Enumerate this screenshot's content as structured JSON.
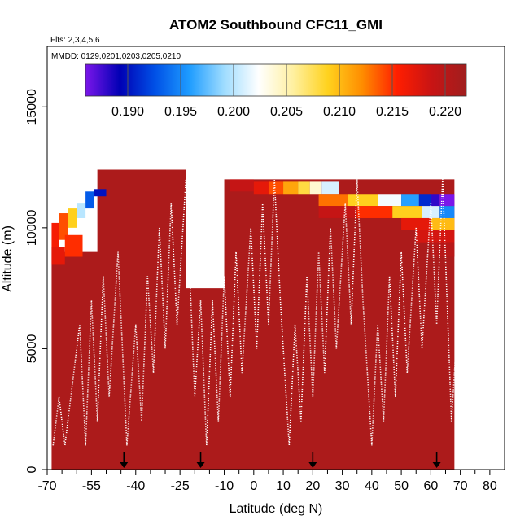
{
  "chart_data": {
    "type": "heatmap",
    "title": "ATOM2 Southbound CFC11_GMI",
    "subtitle_flights": "Flts: 2,3,4,5,6",
    "subtitle_dates": "MMDD: 0129,0201,0203,0205,0210",
    "xlabel": "Latitude (deg N)",
    "ylabel": "Altitude (m)",
    "xlim": [
      -70,
      85
    ],
    "ylim": [
      0,
      17500
    ],
    "x_ticks": [
      -70,
      -55,
      -40,
      -25,
      -10,
      0,
      10,
      20,
      30,
      40,
      50,
      60,
      70,
      80
    ],
    "x_minor_ticks": [
      -65,
      -60,
      -50,
      -45,
      -35,
      -30,
      -20,
      -15,
      -5,
      5,
      15,
      25,
      35,
      45,
      55,
      65,
      75
    ],
    "y_ticks": [
      0,
      5000,
      10000,
      15000
    ],
    "colorbar": {
      "min": 0.186,
      "max": 0.222,
      "ticks": [
        0.19,
        0.195,
        0.2,
        0.205,
        0.21,
        0.215,
        0.22
      ],
      "tick_labels": [
        "0.190",
        "0.195",
        "0.200",
        "0.205",
        "0.210",
        "0.215",
        "0.220"
      ],
      "colors": [
        "#7b16ea",
        "#0000b4",
        "#0050e6",
        "#1e9cff",
        "#9edcff",
        "#ffffff",
        "#fff0a0",
        "#ffd21e",
        "#ff8c00",
        "#ff1e00",
        "#c81414",
        "#a01e1e"
      ]
    },
    "background_value": 0.221,
    "patches": [
      {
        "x": [
          -68.5,
          -66
        ],
        "y": [
          9000,
          10200
        ],
        "value": 0.216
      },
      {
        "x": [
          -66,
          -63
        ],
        "y": [
          9500,
          10600
        ],
        "value": 0.214
      },
      {
        "x": [
          -63,
          -60
        ],
        "y": [
          10000,
          10800
        ],
        "value": 0.209
      },
      {
        "x": [
          -60,
          -57
        ],
        "y": [
          10400,
          11000
        ],
        "value": 0.2
      },
      {
        "x": [
          -57,
          -54
        ],
        "y": [
          10800,
          11500
        ],
        "value": 0.193
      },
      {
        "x": [
          -54,
          -50
        ],
        "y": [
          11300,
          11600
        ],
        "value": 0.19
      },
      {
        "x": [
          -68.5,
          -64
        ],
        "y": [
          8500,
          9200
        ],
        "value": 0.217
      },
      {
        "x": [
          -64,
          -58
        ],
        "y": [
          8800,
          9700
        ],
        "value": 0.215
      },
      {
        "x": [
          -8,
          0
        ],
        "y": [
          11500,
          12000
        ],
        "value": 0.219
      },
      {
        "x": [
          0,
          5
        ],
        "y": [
          11400,
          11900
        ],
        "value": 0.217
      },
      {
        "x": [
          5,
          10
        ],
        "y": [
          11400,
          11900
        ],
        "value": 0.214
      },
      {
        "x": [
          10,
          15
        ],
        "y": [
          11400,
          11900
        ],
        "value": 0.211
      },
      {
        "x": [
          15,
          19
        ],
        "y": [
          11400,
          11900
        ],
        "value": 0.208
      },
      {
        "x": [
          19,
          23
        ],
        "y": [
          11400,
          11900
        ],
        "value": 0.204
      },
      {
        "x": [
          23,
          29
        ],
        "y": [
          11400,
          11900
        ],
        "value": 0.201
      },
      {
        "x": [
          22,
          32
        ],
        "y": [
          10900,
          11400
        ],
        "value": 0.213
      },
      {
        "x": [
          32,
          42
        ],
        "y": [
          10900,
          11400
        ],
        "value": 0.209
      },
      {
        "x": [
          42,
          50
        ],
        "y": [
          10900,
          11400
        ],
        "value": 0.202
      },
      {
        "x": [
          50,
          56
        ],
        "y": [
          10900,
          11400
        ],
        "value": 0.196
      },
      {
        "x": [
          56,
          60
        ],
        "y": [
          10900,
          11400
        ],
        "value": 0.191
      },
      {
        "x": [
          60,
          63
        ],
        "y": [
          10900,
          11400
        ],
        "value": 0.188
      },
      {
        "x": [
          63,
          68
        ],
        "y": [
          10900,
          11400
        ],
        "value": 0.185
      },
      {
        "x": [
          22,
          35
        ],
        "y": [
          10400,
          10900
        ],
        "value": 0.219
      },
      {
        "x": [
          35,
          47
        ],
        "y": [
          10400,
          10900
        ],
        "value": 0.215
      },
      {
        "x": [
          47,
          57
        ],
        "y": [
          10400,
          10900
        ],
        "value": 0.209
      },
      {
        "x": [
          57,
          63
        ],
        "y": [
          10400,
          10900
        ],
        "value": 0.201
      },
      {
        "x": [
          63,
          68
        ],
        "y": [
          10400,
          10900
        ],
        "value": 0.195
      },
      {
        "x": [
          50,
          60
        ],
        "y": [
          9900,
          10400
        ],
        "value": 0.217
      },
      {
        "x": [
          60,
          68
        ],
        "y": [
          9900,
          10400
        ],
        "value": 0.21
      },
      {
        "x": [
          55,
          68
        ],
        "y": [
          9400,
          9900
        ],
        "value": 0.218
      },
      {
        "x": [
          60,
          68
        ],
        "y": [
          8800,
          9400
        ],
        "value": 0.22
      }
    ],
    "flight_track_points": [
      [
        -68,
        1
      ],
      [
        -66,
        3
      ],
      [
        -64,
        1
      ],
      [
        -59,
        6
      ],
      [
        -57,
        1
      ],
      [
        -55,
        7
      ],
      [
        -53,
        2
      ],
      [
        -51,
        8
      ],
      [
        -49,
        3
      ],
      [
        -46,
        9
      ],
      [
        -43,
        1
      ],
      [
        -40,
        6
      ],
      [
        -38,
        2
      ],
      [
        -36,
        8
      ],
      [
        -34,
        4
      ],
      [
        -32,
        10
      ],
      [
        -30,
        5
      ],
      [
        -28,
        11
      ],
      [
        -26,
        6
      ],
      [
        -23,
        12
      ],
      [
        -20,
        3
      ],
      [
        -18,
        7
      ],
      [
        -16,
        1
      ],
      [
        -14,
        7
      ],
      [
        -12,
        2
      ],
      [
        -10,
        8
      ],
      [
        -8,
        3
      ],
      [
        -6,
        9
      ],
      [
        -4,
        4
      ],
      [
        -1,
        10
      ],
      [
        1,
        5
      ],
      [
        3,
        11
      ],
      [
        5,
        6
      ],
      [
        7,
        12
      ],
      [
        9,
        7
      ],
      [
        12,
        1
      ],
      [
        14,
        6
      ],
      [
        16,
        2
      ],
      [
        18,
        8
      ],
      [
        20,
        3
      ],
      [
        22,
        9
      ],
      [
        24,
        4
      ],
      [
        26,
        10
      ],
      [
        28,
        5
      ],
      [
        31,
        11
      ],
      [
        33,
        6
      ],
      [
        35,
        12
      ],
      [
        37,
        7
      ],
      [
        40,
        1
      ],
      [
        42,
        6
      ],
      [
        44,
        2
      ],
      [
        46,
        8
      ],
      [
        48,
        3
      ],
      [
        50,
        9
      ],
      [
        52,
        4
      ],
      [
        55,
        10
      ],
      [
        57,
        5
      ],
      [
        60,
        11
      ],
      [
        62,
        6
      ],
      [
        64,
        12
      ],
      [
        67,
        2
      ],
      [
        70,
        8
      ]
    ],
    "arrow_latitudes": [
      -44,
      -18,
      20,
      62
    ]
  }
}
